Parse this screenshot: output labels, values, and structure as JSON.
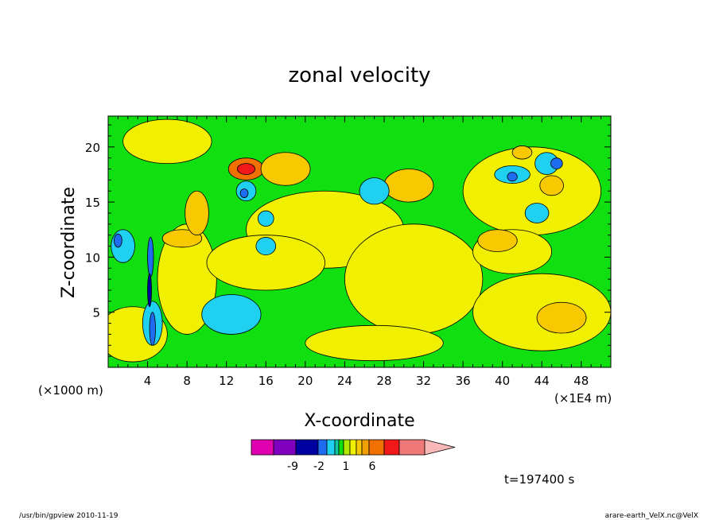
{
  "chart_data": {
    "type": "heatmap",
    "title": "zonal velocity",
    "xlabel": "X-coordinate",
    "ylabel": "Z-coordinate",
    "x_unit": "(×1E4 m)",
    "y_unit": "(×1000 m)",
    "xlim": [
      0,
      51
    ],
    "ylim": [
      0,
      22.8
    ],
    "x_ticks": [
      4,
      8,
      12,
      16,
      20,
      24,
      28,
      32,
      36,
      40,
      44,
      48
    ],
    "y_ticks": [
      5,
      10,
      15,
      20
    ],
    "colorbar": {
      "colors": [
        "#e000b0",
        "#8000c0",
        "#0000a0",
        "#1e6cf0",
        "#20d0f0",
        "#10c8a0",
        "#10e010",
        "#b0e800",
        "#f0f000",
        "#f8c800",
        "#f0a000",
        "#f07000",
        "#f01818",
        "#f07878",
        "#f8b8b8"
      ],
      "tick_labels": [
        "-9",
        "-2",
        "1",
        "6"
      ]
    },
    "time_label": "t=197400 s",
    "field": {
      "background_level": "green",
      "blobs": [
        {
          "x": 2.5,
          "y": 3,
          "rx": 3.5,
          "ry": 2.5,
          "level": "yellow"
        },
        {
          "x": 8,
          "y": 8,
          "rx": 3,
          "ry": 5,
          "level": "yellow"
        },
        {
          "x": 22,
          "y": 12.5,
          "rx": 8,
          "ry": 3.5,
          "level": "yellow"
        },
        {
          "x": 16,
          "y": 9.5,
          "rx": 6,
          "ry": 2.5,
          "level": "yellow"
        },
        {
          "x": 31,
          "y": 8,
          "rx": 7,
          "ry": 5,
          "level": "yellow"
        },
        {
          "x": 43,
          "y": 16,
          "rx": 7,
          "ry": 4,
          "level": "yellow"
        },
        {
          "x": 44,
          "y": 5,
          "rx": 7,
          "ry": 3.5,
          "level": "yellow"
        },
        {
          "x": 27,
          "y": 2.2,
          "rx": 7,
          "ry": 1.6,
          "level": "yellow"
        },
        {
          "x": 6,
          "y": 20.5,
          "rx": 4.5,
          "ry": 2,
          "level": "yellow"
        },
        {
          "x": 41,
          "y": 10.5,
          "rx": 4,
          "ry": 2,
          "level": "yellow"
        },
        {
          "x": 14,
          "y": 18,
          "rx": 1.8,
          "ry": 1,
          "level": "orange"
        },
        {
          "x": 14,
          "y": 18,
          "rx": 0.9,
          "ry": 0.5,
          "level": "red"
        },
        {
          "x": 30.5,
          "y": 16.5,
          "rx": 2.5,
          "ry": 1.5,
          "level": "light-orange"
        },
        {
          "x": 39.5,
          "y": 11.5,
          "rx": 2,
          "ry": 1,
          "level": "light-orange"
        },
        {
          "x": 46,
          "y": 4.5,
          "rx": 2.5,
          "ry": 1.4,
          "level": "light-orange"
        },
        {
          "x": 45,
          "y": 16.5,
          "rx": 1.2,
          "ry": 0.9,
          "level": "light-orange"
        },
        {
          "x": 42,
          "y": 19.5,
          "rx": 1,
          "ry": 0.6,
          "level": "light-orange"
        },
        {
          "x": 7.5,
          "y": 11.7,
          "rx": 2,
          "ry": 0.8,
          "level": "light-orange"
        },
        {
          "x": 9,
          "y": 14,
          "rx": 1.2,
          "ry": 2,
          "level": "light-orange"
        },
        {
          "x": 18,
          "y": 18,
          "rx": 2.5,
          "ry": 1.5,
          "level": "light-orange"
        },
        {
          "x": 27,
          "y": 16,
          "rx": 1.5,
          "ry": 1.2,
          "level": "cyan"
        },
        {
          "x": 12.5,
          "y": 4.8,
          "rx": 3,
          "ry": 1.8,
          "level": "cyan"
        },
        {
          "x": 4.5,
          "y": 4,
          "rx": 1,
          "ry": 2,
          "level": "cyan"
        },
        {
          "x": 1.5,
          "y": 11,
          "rx": 1.2,
          "ry": 1.5,
          "level": "cyan"
        },
        {
          "x": 14,
          "y": 16,
          "rx": 1,
          "ry": 0.9,
          "level": "cyan"
        },
        {
          "x": 16,
          "y": 13.5,
          "rx": 0.8,
          "ry": 0.7,
          "level": "cyan"
        },
        {
          "x": 16,
          "y": 11,
          "rx": 1,
          "ry": 0.8,
          "level": "cyan"
        },
        {
          "x": 43.5,
          "y": 14,
          "rx": 1.2,
          "ry": 0.9,
          "level": "cyan"
        },
        {
          "x": 41,
          "y": 17.5,
          "rx": 1.8,
          "ry": 0.8,
          "level": "cyan"
        },
        {
          "x": 44.5,
          "y": 18.5,
          "rx": 1.2,
          "ry": 1,
          "level": "cyan"
        },
        {
          "x": 13.8,
          "y": 15.8,
          "rx": 0.4,
          "ry": 0.4,
          "level": "blue"
        },
        {
          "x": 41,
          "y": 17.3,
          "rx": 0.5,
          "ry": 0.4,
          "level": "blue"
        },
        {
          "x": 45.5,
          "y": 18.5,
          "rx": 0.6,
          "ry": 0.5,
          "level": "blue"
        },
        {
          "x": 1,
          "y": 11.5,
          "rx": 0.4,
          "ry": 0.6,
          "level": "blue"
        },
        {
          "x": 4.3,
          "y": 10,
          "rx": 0.3,
          "ry": 1.8,
          "level": "blue"
        },
        {
          "x": 4.5,
          "y": 3.5,
          "rx": 0.3,
          "ry": 1.5,
          "level": "blue"
        },
        {
          "x": 4.2,
          "y": 7,
          "rx": 0.2,
          "ry": 1.5,
          "level": "purple"
        }
      ]
    }
  },
  "footer": {
    "left": "/usr/bin/gpview   2010-11-19",
    "right": "arare-earth_VelX.nc@VelX"
  }
}
